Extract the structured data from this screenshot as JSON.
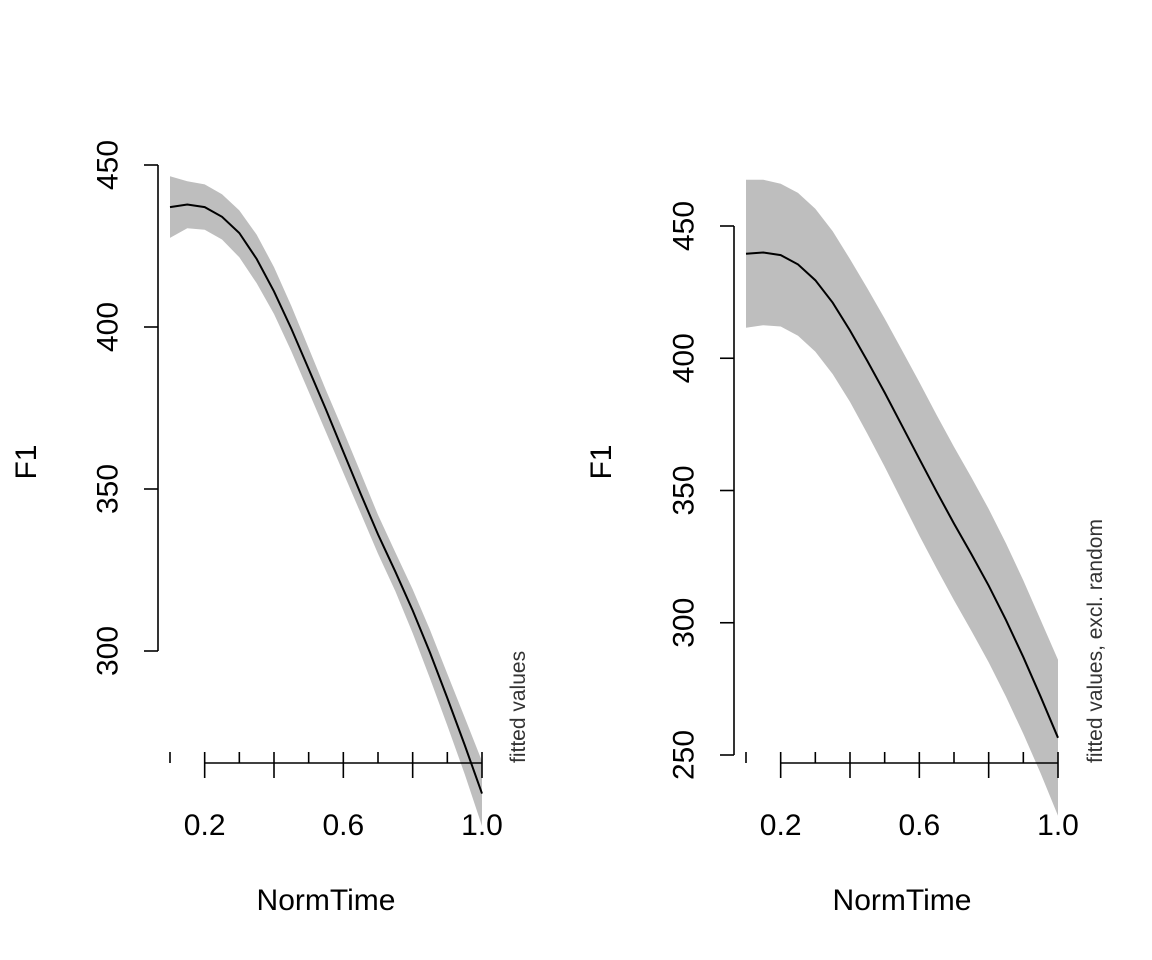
{
  "colors": {
    "band": "#bebebe",
    "line": "#000000",
    "note": "#333333"
  },
  "chart_data": [
    {
      "type": "line",
      "xlabel": "NormTime",
      "ylabel": "F1",
      "annotation": "fitted values",
      "xlim": [
        0.1,
        1.0
      ],
      "ylim": [
        268,
        448
      ],
      "xticks": [
        0.1,
        0.2,
        0.3,
        0.4,
        0.5,
        0.6,
        0.7,
        0.8,
        0.9,
        1.0
      ],
      "xtick_labels": [
        {
          "value": 0.2,
          "label": "0.2"
        },
        {
          "value": 0.6,
          "label": "0.6"
        },
        {
          "value": 1.0,
          "label": "1.0"
        }
      ],
      "yticks": [
        {
          "value": 300,
          "label": "300"
        },
        {
          "value": 350,
          "label": "350"
        },
        {
          "value": 400,
          "label": "400"
        },
        {
          "value": 450,
          "label": "450"
        }
      ],
      "x": [
        0.1,
        0.15,
        0.2,
        0.25,
        0.3,
        0.35,
        0.4,
        0.45,
        0.5,
        0.55,
        0.6,
        0.65,
        0.7,
        0.75,
        0.8,
        0.85,
        0.9,
        0.95,
        1.0
      ],
      "fit": [
        437,
        437.8,
        437,
        434,
        429,
        421,
        411,
        399.5,
        387,
        374.5,
        361.5,
        348.5,
        336,
        324.5,
        312.5,
        299.5,
        285.5,
        271,
        256
      ],
      "lower": [
        427.5,
        430.5,
        430,
        427,
        421.5,
        413.5,
        404,
        392.5,
        380,
        367.5,
        355,
        342.5,
        330,
        318.5,
        305.5,
        291.5,
        277,
        262,
        246
      ],
      "upper": [
        446.5,
        445,
        444,
        441,
        436,
        428.5,
        418.5,
        406.5,
        393.5,
        380.5,
        368,
        355,
        342,
        330.5,
        319,
        306.5,
        293,
        279.5,
        266
      ]
    },
    {
      "type": "line",
      "xlabel": "NormTime",
      "ylabel": "F1",
      "annotation": "fitted values, excl. random",
      "xlim": [
        0.1,
        1.0
      ],
      "ylim": [
        250,
        470
      ],
      "xticks": [
        0.1,
        0.2,
        0.3,
        0.4,
        0.5,
        0.6,
        0.7,
        0.8,
        0.9,
        1.0
      ],
      "xtick_labels": [
        {
          "value": 0.2,
          "label": "0.2"
        },
        {
          "value": 0.6,
          "label": "0.6"
        },
        {
          "value": 1.0,
          "label": "1.0"
        }
      ],
      "yticks": [
        {
          "value": 250,
          "label": "250"
        },
        {
          "value": 300,
          "label": "300"
        },
        {
          "value": 350,
          "label": "350"
        },
        {
          "value": 400,
          "label": "400"
        },
        {
          "value": 450,
          "label": "450"
        }
      ],
      "x": [
        0.1,
        0.15,
        0.2,
        0.25,
        0.3,
        0.35,
        0.4,
        0.45,
        0.5,
        0.55,
        0.6,
        0.65,
        0.7,
        0.75,
        0.8,
        0.85,
        0.9,
        0.95,
        1.0
      ],
      "fit": [
        439.5,
        440,
        439,
        435.5,
        429.5,
        421,
        410.5,
        399,
        387,
        374.5,
        362,
        349.5,
        337.5,
        326,
        314,
        301,
        287,
        272,
        256.5
      ],
      "lower": [
        411.5,
        412.5,
        412,
        408.5,
        402.5,
        394,
        383.5,
        371.5,
        359,
        346,
        333,
        320.5,
        308.5,
        297,
        285,
        272,
        258,
        243,
        227
      ],
      "upper": [
        467.5,
        467.5,
        466,
        462.5,
        456.5,
        448,
        437.5,
        426.5,
        415,
        403,
        391,
        378.5,
        366.5,
        355,
        343,
        330,
        316,
        301,
        286
      ]
    }
  ]
}
